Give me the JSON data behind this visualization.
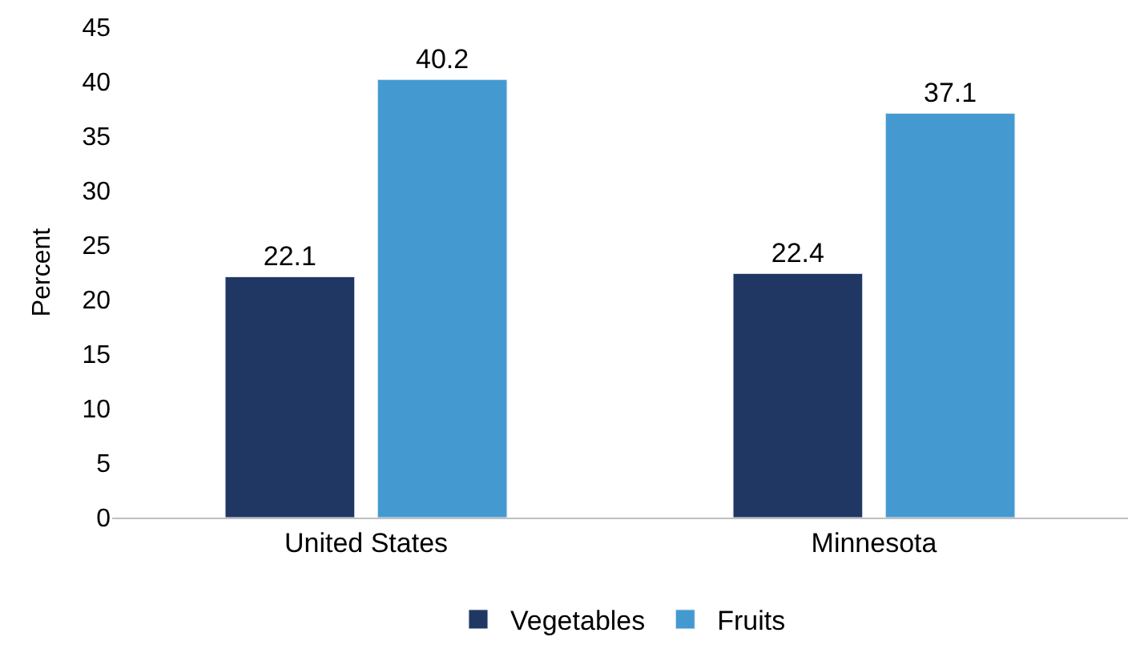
{
  "chart_data": {
    "type": "bar",
    "ylabel": "Percent",
    "categories": [
      "United States",
      "Minnesota"
    ],
    "series": [
      {
        "name": "Vegetables",
        "color": "#203764",
        "values": [
          22.1,
          22.4
        ]
      },
      {
        "name": "Fruits",
        "color": "#449ad0",
        "values": [
          40.2,
          37.1
        ]
      }
    ],
    "ylim": [
      0,
      45
    ],
    "yticks": [
      0,
      5,
      10,
      15,
      20,
      25,
      30,
      35,
      40,
      45
    ],
    "data_labels": true,
    "grid": false,
    "legend": "bottom"
  }
}
